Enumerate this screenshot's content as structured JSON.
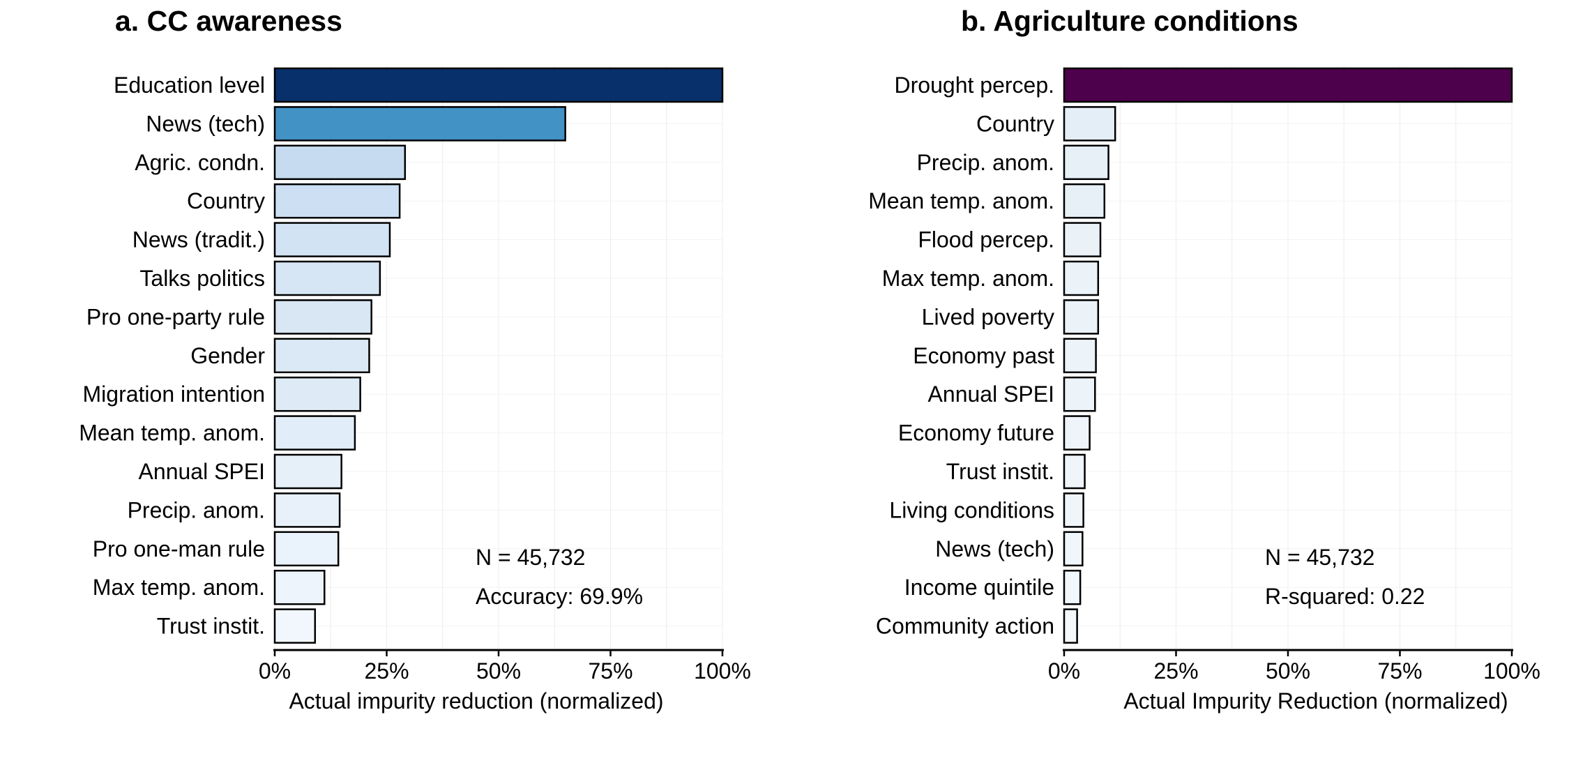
{
  "chart_data": [
    {
      "type": "bar",
      "orientation": "horizontal",
      "title": "a. CC awareness",
      "xlabel": "Actual impurity reduction (normalized)",
      "ylabel": "",
      "xlim": [
        0,
        100
      ],
      "xticks": [
        "0%",
        "25%",
        "50%",
        "75%",
        "100%"
      ],
      "grid": true,
      "categories": [
        "Education level",
        "News (tech)",
        "Agric. condn.",
        "Country",
        "News (tradit.)",
        "Talks politics",
        "Pro one-party rule",
        "Gender",
        "Migration intention",
        "Mean temp. anom.",
        "Annual SPEI",
        "Precip. anom.",
        "Pro one-man rule",
        "Max temp. anom.",
        "Trust instit."
      ],
      "values": [
        100,
        64.9,
        29.1,
        27.9,
        25.7,
        23.5,
        21.6,
        21.1,
        19.1,
        17.9,
        14.9,
        14.5,
        14.2,
        11.1,
        9.0
      ],
      "colors": [
        "#08306b",
        "#4292c6",
        "#c6dbef",
        "#cddff2",
        "#d2e3f3",
        "#d6e6f4",
        "#d9e7f5",
        "#dbe9f6",
        "#deebf7",
        "#e1edf8",
        "#e6f0f9",
        "#e8f1fa",
        "#eaf2fb",
        "#edf4fc",
        "#f2f7fd"
      ],
      "annotations": [
        "N = 45,732",
        "Accuracy: 69.9%"
      ]
    },
    {
      "type": "bar",
      "orientation": "horizontal",
      "title": "b. Agriculture conditions",
      "xlabel": "Actual Impurity Reduction (normalized)",
      "ylabel": "",
      "xlim": [
        0,
        100
      ],
      "xticks": [
        "0%",
        "25%",
        "50%",
        "75%",
        "100%"
      ],
      "grid": true,
      "categories": [
        "Drought percep.",
        "Country",
        "Precip. anom.",
        "Mean temp. anom.",
        "Flood percep.",
        "Max temp. anom.",
        "Lived poverty",
        "Economy past",
        "Annual SPEI",
        "Economy future",
        "Trust instit.",
        "Living conditions",
        "News (tech)",
        "Income quintile",
        "Community action"
      ],
      "values": [
        100,
        11.4,
        9.9,
        9.0,
        8.1,
        7.6,
        7.6,
        7.1,
        6.9,
        5.7,
        4.6,
        4.3,
        4.1,
        3.6,
        2.9
      ],
      "colors": [
        "#4d004b",
        "#e4eef6",
        "#e7f0f7",
        "#e8f0f7",
        "#eaf2f8",
        "#ebf2f8",
        "#ebf2f8",
        "#ecf3f9",
        "#ecf3f9",
        "#eef4f9",
        "#f0f5fa",
        "#f0f5fa",
        "#f1f6fa",
        "#f2f7fb",
        "#f4f8fb"
      ],
      "annotations": [
        "N = 45,732",
        "R-squared: 0.22"
      ]
    }
  ]
}
